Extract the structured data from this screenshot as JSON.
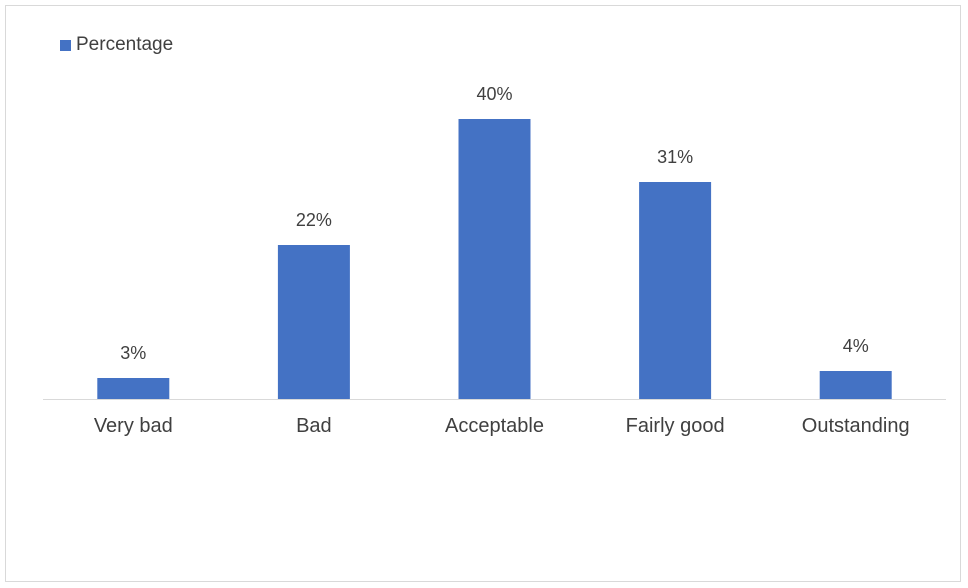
{
  "chart_data": {
    "type": "bar",
    "categories": [
      "Very bad",
      "Bad",
      "Acceptable",
      "Fairly good",
      "Outstanding"
    ],
    "series": [
      {
        "name": "Percentage",
        "values": [
          3,
          22,
          40,
          31,
          4
        ],
        "labels": [
          "3%",
          "22%",
          "40%",
          "31%",
          "4%"
        ],
        "color": "#4472c4"
      }
    ],
    "title": "",
    "xlabel": "",
    "ylabel": "",
    "ylim": [
      0,
      45
    ],
    "grid": false,
    "legend": "top-left"
  }
}
